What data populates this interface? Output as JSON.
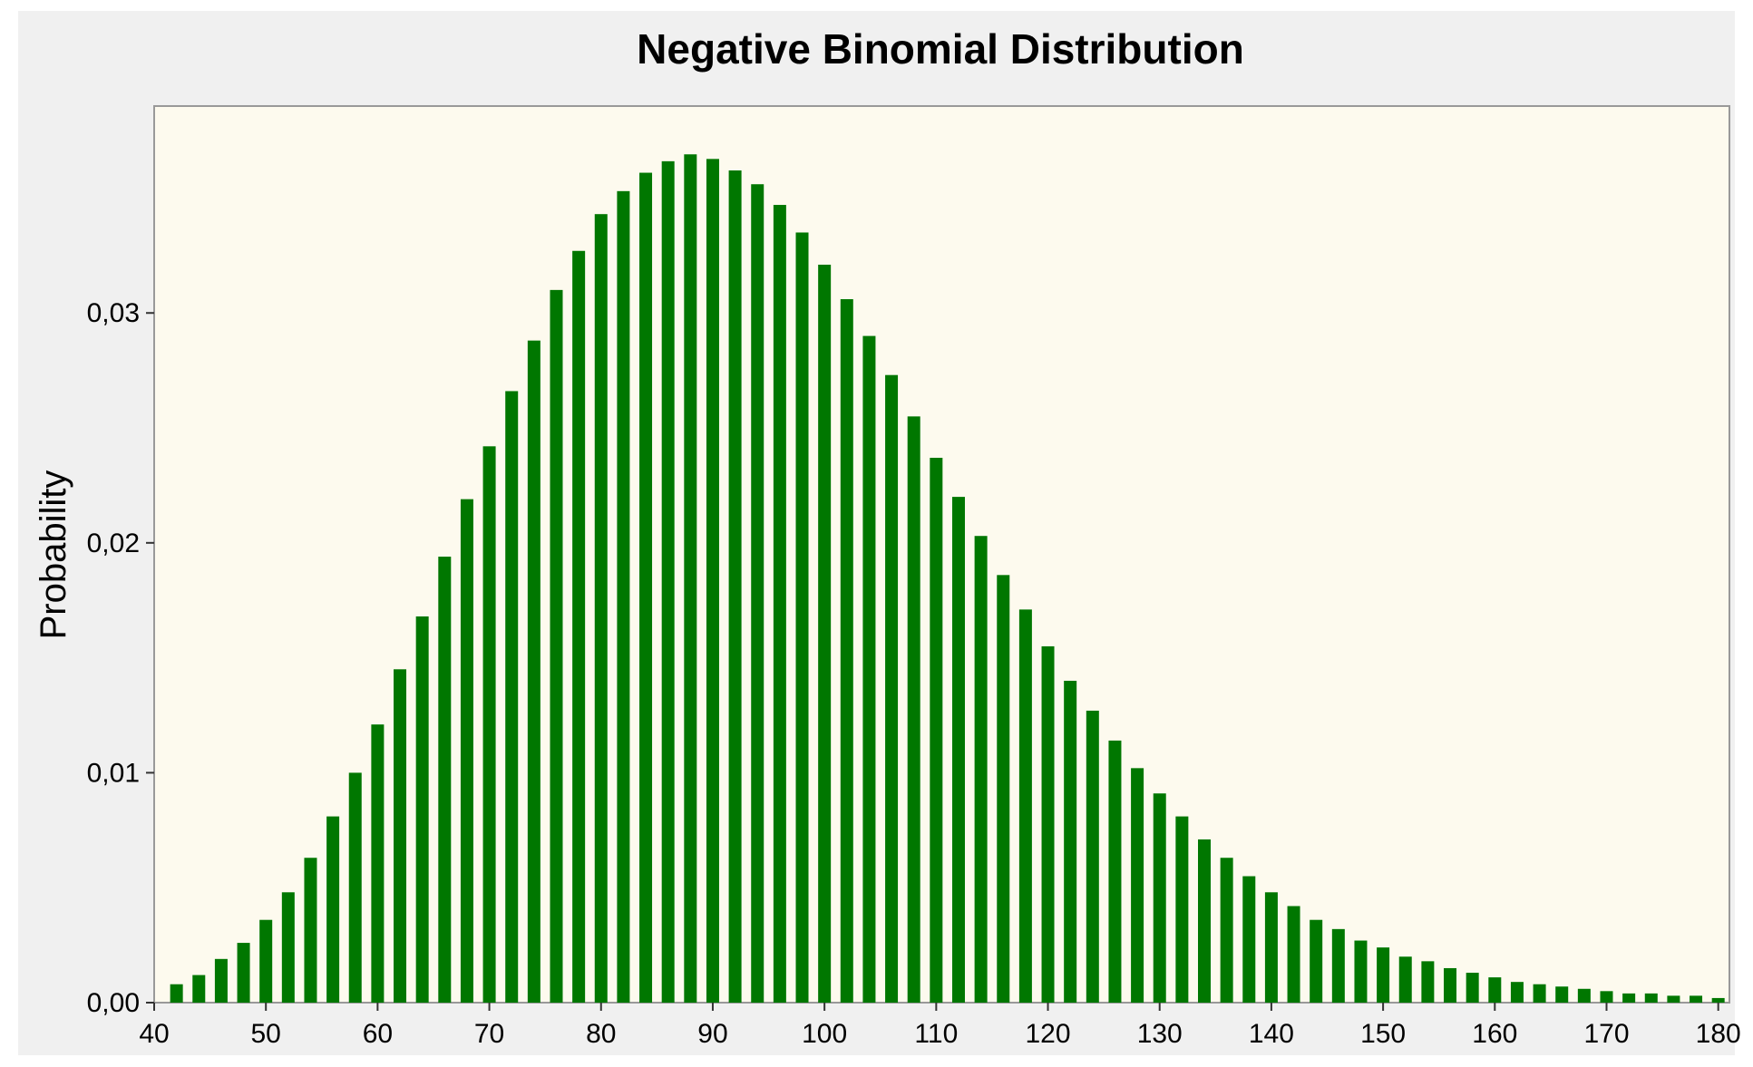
{
  "chart_data": {
    "type": "bar",
    "title": "Negative Binomial Distribution",
    "xlabel": "",
    "ylabel": "Probability",
    "x": [
      42,
      44,
      46,
      48,
      50,
      52,
      54,
      56,
      58,
      60,
      62,
      64,
      66,
      68,
      70,
      72,
      74,
      76,
      78,
      80,
      82,
      84,
      86,
      88,
      90,
      92,
      94,
      96,
      98,
      100,
      102,
      104,
      106,
      108,
      110,
      112,
      114,
      116,
      118,
      120,
      122,
      124,
      126,
      128,
      130,
      132,
      134,
      136,
      138,
      140,
      142,
      144,
      146,
      148,
      150,
      152,
      154,
      156,
      158,
      160,
      162,
      164,
      166,
      168,
      170,
      172,
      174,
      176,
      178,
      180
    ],
    "values": [
      0.0008,
      0.0012,
      0.0019,
      0.0026,
      0.0036,
      0.0048,
      0.0063,
      0.0081,
      0.01,
      0.0121,
      0.0145,
      0.0168,
      0.0194,
      0.0219,
      0.0242,
      0.0266,
      0.0288,
      0.031,
      0.0327,
      0.0343,
      0.0353,
      0.0361,
      0.0366,
      0.0369,
      0.0367,
      0.0362,
      0.0356,
      0.0347,
      0.0335,
      0.0321,
      0.0306,
      0.029,
      0.0273,
      0.0255,
      0.0237,
      0.022,
      0.0203,
      0.0186,
      0.0171,
      0.0155,
      0.014,
      0.0127,
      0.0114,
      0.0102,
      0.0091,
      0.0081,
      0.0071,
      0.0063,
      0.0055,
      0.0048,
      0.0042,
      0.0036,
      0.0032,
      0.0027,
      0.0024,
      0.002,
      0.0018,
      0.0015,
      0.0013,
      0.0011,
      0.0009,
      0.0008,
      0.0007,
      0.0006,
      0.0005,
      0.0004,
      0.0004,
      0.0003,
      0.0003,
      0.0002
    ],
    "x_ticks": [
      40,
      50,
      60,
      70,
      80,
      90,
      100,
      110,
      120,
      130,
      140,
      150,
      160,
      170,
      180
    ],
    "x_tick_labels": [
      "40",
      "50",
      "60",
      "70",
      "80",
      "90",
      "100",
      "110",
      "120",
      "130",
      "140",
      "150",
      "160",
      "170",
      "180"
    ],
    "y_ticks": [
      0,
      0.01,
      0.02,
      0.03
    ],
    "y_tick_labels": [
      "0,00",
      "0,01",
      "0,02",
      "0,03"
    ],
    "xlim": [
      40,
      181
    ],
    "ylim": [
      0,
      0.039
    ],
    "grid": false,
    "colors": {
      "bar": "#007700",
      "plot_background": "#fdfaee",
      "frame_background": "#f0f0f0",
      "plot_border": "#999999"
    }
  }
}
